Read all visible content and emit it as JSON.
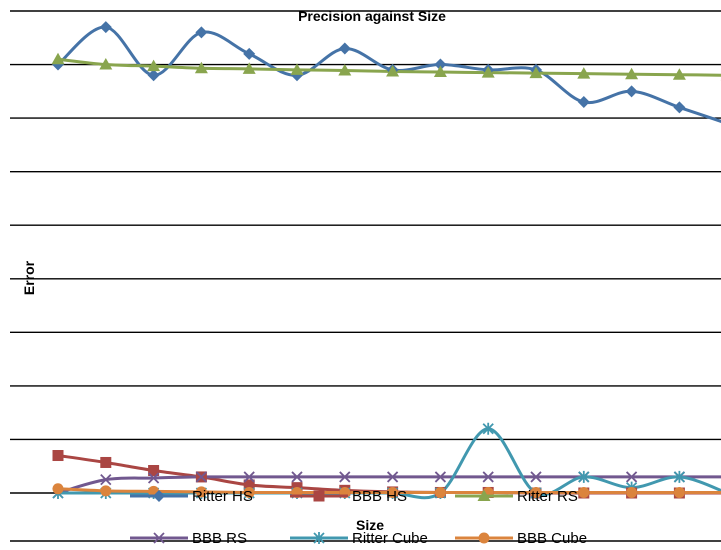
{
  "chart_data": {
    "type": "line",
    "title": "Precision against Size",
    "xlabel": "Size",
    "ylabel": "Error",
    "ylim": [
      0,
      9
    ],
    "grid": true,
    "legend_position": "bottom",
    "x": [
      1,
      2,
      3,
      4,
      5,
      6,
      7,
      8,
      9,
      10,
      11,
      12,
      13,
      14,
      15
    ],
    "series": [
      {
        "name": "Ritter HS",
        "color": "#4573A7",
        "marker": "diamond",
        "values": [
          8.0,
          8.7,
          7.8,
          8.6,
          8.2,
          7.8,
          8.3,
          7.9,
          8.0,
          7.9,
          7.9,
          7.3,
          7.5,
          7.2,
          6.9
        ]
      },
      {
        "name": "BBB HS",
        "color": "#AA4643",
        "marker": "square",
        "values": [
          0.7,
          0.57,
          0.42,
          0.3,
          0.15,
          0.1,
          0.05,
          0.02,
          0.01,
          0.01,
          0.0,
          0.0,
          0.0,
          0.0,
          0.0
        ]
      },
      {
        "name": "Ritter RS",
        "color": "#89A54E",
        "marker": "triangle",
        "values": [
          8.1,
          8.0,
          7.97,
          7.93,
          7.92,
          7.9,
          7.89,
          7.87,
          7.86,
          7.85,
          7.84,
          7.83,
          7.82,
          7.81,
          7.8
        ]
      },
      {
        "name": "BBB RS",
        "color": "#71588F",
        "marker": "x",
        "values": [
          0.0,
          0.25,
          0.28,
          0.3,
          0.3,
          0.3,
          0.3,
          0.3,
          0.3,
          0.3,
          0.3,
          0.3,
          0.3,
          0.3,
          0.3
        ]
      },
      {
        "name": "Ritter Cube",
        "color": "#4198AF",
        "marker": "star",
        "values": [
          0.0,
          0.0,
          0.0,
          0.0,
          0.0,
          0.0,
          0.0,
          0.0,
          0.0,
          1.2,
          0.0,
          0.3,
          0.1,
          0.3,
          0.0
        ]
      },
      {
        "name": "BBB Cube",
        "color": "#DB843D",
        "marker": "circle",
        "values": [
          0.08,
          0.04,
          0.03,
          0.02,
          0.01,
          0.01,
          0.01,
          0.01,
          0.01,
          0.01,
          0.01,
          0.01,
          0.01,
          0.01,
          0.01
        ]
      }
    ]
  }
}
